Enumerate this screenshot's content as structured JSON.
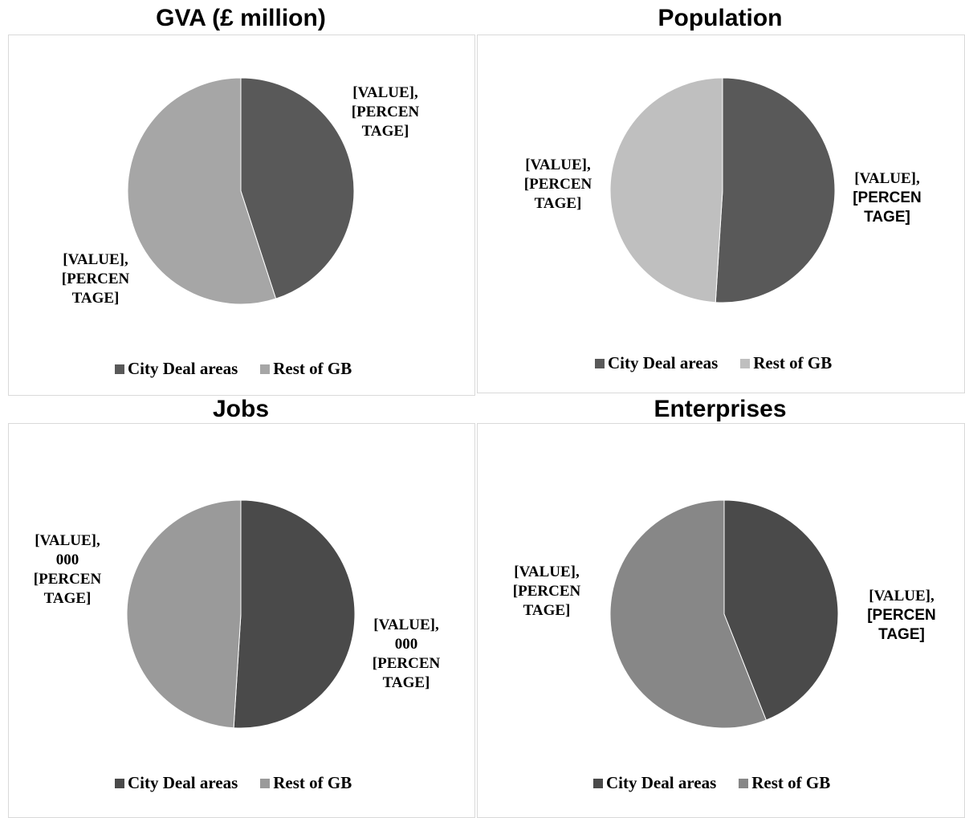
{
  "chart_data": [
    {
      "type": "pie",
      "title": "GVA (£ million)",
      "categories": [
        "City Deal areas",
        "Rest of GB"
      ],
      "values": [
        45,
        55
      ],
      "colors": [
        "#595959",
        "#a6a6a6"
      ],
      "data_labels": [
        {
          "line1": "[VALUE],",
          "line2": "[PERCEN",
          "line3": "TAGE]"
        },
        {
          "line1": "[VALUE],",
          "line2": "[PERCEN",
          "line3": "TAGE]"
        }
      ],
      "legend_position": "bottom"
    },
    {
      "type": "pie",
      "title": "Population",
      "categories": [
        "City Deal areas",
        "Rest of GB"
      ],
      "values": [
        51,
        49
      ],
      "colors": [
        "#595959",
        "#bfbfbf"
      ],
      "data_labels": [
        {
          "line1": "[VALUE],",
          "line2": "[PERCEN",
          "line3": "TAGE]"
        },
        {
          "line1": "[VALUE],",
          "line2": "[PERCEN",
          "line3": "TAGE]"
        }
      ],
      "legend_position": "bottom"
    },
    {
      "type": "pie",
      "title": "Jobs",
      "categories": [
        "City Deal areas",
        "Rest of GB"
      ],
      "values": [
        51,
        49
      ],
      "colors": [
        "#4a4a4a",
        "#9a9a9a"
      ],
      "data_labels": [
        {
          "line1": "[VALUE],",
          "line2": "000",
          "line3": "[PERCEN",
          "line4": "TAGE]"
        },
        {
          "line1": "[VALUE],",
          "line2": "000",
          "line3": "[PERCEN",
          "line4": "TAGE]"
        }
      ],
      "legend_position": "bottom"
    },
    {
      "type": "pie",
      "title": "Enterprises",
      "categories": [
        "City Deal areas",
        "Rest of GB"
      ],
      "values": [
        44,
        56
      ],
      "colors": [
        "#4a4a4a",
        "#878787"
      ],
      "data_labels": [
        {
          "line1": "[VALUE],",
          "line2": "[PERCEN",
          "line3": "TAGE]"
        },
        {
          "line1": "[VALUE],",
          "line2": "[PERCEN",
          "line3": "TAGE]"
        }
      ],
      "legend_position": "bottom"
    }
  ]
}
